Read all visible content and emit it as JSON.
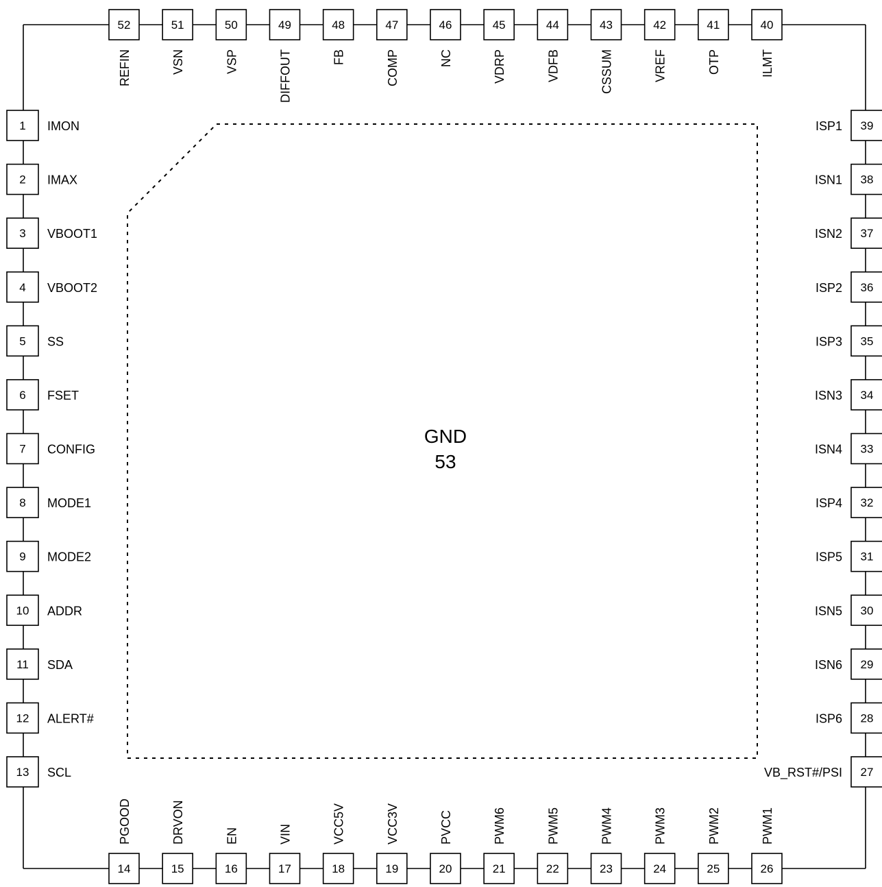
{
  "package": {
    "left_pins": [
      {
        "number": "1",
        "name": "IMON"
      },
      {
        "number": "2",
        "name": "IMAX"
      },
      {
        "number": "3",
        "name": "VBOOT1"
      },
      {
        "number": "4",
        "name": "VBOOT2"
      },
      {
        "number": "5",
        "name": "SS"
      },
      {
        "number": "6",
        "name": "FSET"
      },
      {
        "number": "7",
        "name": "CONFIG"
      },
      {
        "number": "8",
        "name": "MODE1"
      },
      {
        "number": "9",
        "name": "MODE2"
      },
      {
        "number": "10",
        "name": "ADDR"
      },
      {
        "number": "11",
        "name": "SDA"
      },
      {
        "number": "12",
        "name": "ALERT#"
      },
      {
        "number": "13",
        "name": "SCL"
      }
    ],
    "bottom_pins": [
      {
        "number": "14",
        "name": "PGOOD"
      },
      {
        "number": "15",
        "name": "DRVON"
      },
      {
        "number": "16",
        "name": "EN"
      },
      {
        "number": "17",
        "name": "VIN"
      },
      {
        "number": "18",
        "name": "VCC5V"
      },
      {
        "number": "19",
        "name": "VCC3V"
      },
      {
        "number": "20",
        "name": "PVCC"
      },
      {
        "number": "21",
        "name": "PWM6"
      },
      {
        "number": "22",
        "name": "PWM5"
      },
      {
        "number": "23",
        "name": "PWM4"
      },
      {
        "number": "24",
        "name": "PWM3"
      },
      {
        "number": "25",
        "name": "PWM2"
      },
      {
        "number": "26",
        "name": "PWM1"
      }
    ],
    "right_pins": [
      {
        "number": "39",
        "name": "ISP1"
      },
      {
        "number": "38",
        "name": "ISN1"
      },
      {
        "number": "37",
        "name": "ISN2"
      },
      {
        "number": "36",
        "name": "ISP2"
      },
      {
        "number": "35",
        "name": "ISP3"
      },
      {
        "number": "34",
        "name": "ISN3"
      },
      {
        "number": "33",
        "name": "ISN4"
      },
      {
        "number": "32",
        "name": "ISP4"
      },
      {
        "number": "31",
        "name": "ISP5"
      },
      {
        "number": "30",
        "name": "ISN5"
      },
      {
        "number": "29",
        "name": "ISN6"
      },
      {
        "number": "28",
        "name": "ISP6"
      },
      {
        "number": "27",
        "name": "VB_RST#/PSI"
      }
    ],
    "top_pins": [
      {
        "number": "52",
        "name": "REFIN"
      },
      {
        "number": "51",
        "name": "VSN"
      },
      {
        "number": "50",
        "name": "VSP"
      },
      {
        "number": "49",
        "name": "DIFFOUT"
      },
      {
        "number": "48",
        "name": "FB"
      },
      {
        "number": "47",
        "name": "COMP"
      },
      {
        "number": "46",
        "name": "NC"
      },
      {
        "number": "45",
        "name": "VDRP"
      },
      {
        "number": "44",
        "name": "VDFB"
      },
      {
        "number": "43",
        "name": "CSSUM"
      },
      {
        "number": "42",
        "name": "VREF"
      },
      {
        "number": "41",
        "name": "OTP"
      },
      {
        "number": "40",
        "name": "ILMT"
      }
    ],
    "exposed_pad": {
      "name": "GND",
      "number": "53"
    }
  }
}
